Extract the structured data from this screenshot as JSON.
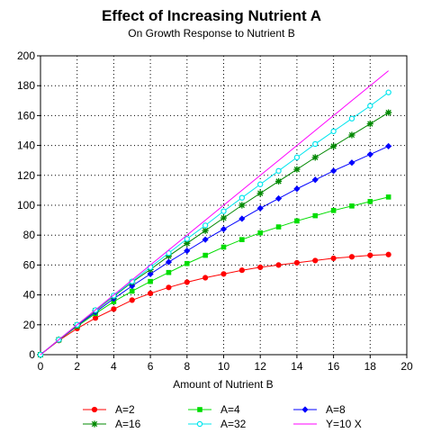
{
  "chart_data": {
    "type": "line",
    "title": "Effect of Increasing Nutrient A",
    "subtitle": "On Growth Response to Nutrient B",
    "xlabel": "Amount of Nutrient B",
    "ylabel": "",
    "xlim": [
      0,
      20
    ],
    "ylim": [
      0,
      200
    ],
    "xticks": [
      0,
      2,
      4,
      6,
      8,
      10,
      12,
      14,
      16,
      18,
      20
    ],
    "yticks": [
      0,
      20,
      40,
      60,
      80,
      100,
      120,
      140,
      160,
      180,
      200
    ],
    "grid": true,
    "legend_position": "bottom",
    "x": [
      0,
      1,
      2,
      3,
      4,
      5,
      6,
      7,
      8,
      9,
      10,
      11,
      12,
      13,
      14,
      15,
      16,
      17,
      18,
      19
    ],
    "series": [
      {
        "name": "A=2",
        "color": "#ff0000",
        "marker": "circle",
        "values": [
          0,
          9.5,
          17.5,
          24.5,
          30.5,
          36.5,
          41,
          45,
          48.5,
          51.5,
          54,
          56.5,
          58.5,
          60,
          61.5,
          63,
          64.5,
          65.5,
          66.5,
          67
        ]
      },
      {
        "name": "A=4",
        "color": "#00dd00",
        "marker": "square",
        "values": [
          0,
          9.8,
          19,
          27.5,
          35.5,
          42.5,
          49,
          55,
          61,
          66.5,
          72,
          77,
          81.5,
          85.5,
          89.5,
          93,
          96.5,
          99.5,
          102.5,
          105.5
        ]
      },
      {
        "name": "A=8",
        "color": "#0000ff",
        "marker": "diamond",
        "values": [
          0,
          9.9,
          19.5,
          28.5,
          37.5,
          46,
          54,
          62,
          69.5,
          77,
          84,
          91,
          98,
          104.5,
          111,
          117,
          123,
          128.5,
          134,
          139.5
        ]
      },
      {
        "name": "A=16",
        "color": "#008800",
        "marker": "star",
        "values": [
          0,
          10,
          19.8,
          29.5,
          39,
          48.5,
          57,
          66,
          74.5,
          83,
          91.5,
          100,
          108,
          116,
          124,
          132,
          139.5,
          147,
          154.5,
          162
        ]
      },
      {
        "name": "A=32",
        "color": "#00e5ee",
        "marker": "circle-open",
        "values": [
          0,
          10,
          20,
          29.8,
          39.5,
          49,
          58.5,
          68,
          77.5,
          86.5,
          96,
          105,
          114,
          123,
          132,
          141,
          149.5,
          158,
          166.5,
          175.5
        ]
      },
      {
        "name": "Y=10 X",
        "color": "#ff00ff",
        "marker": "none",
        "values": [
          0,
          10,
          20,
          30,
          40,
          50,
          60,
          70,
          80,
          90,
          100,
          110,
          120,
          130,
          140,
          150,
          160,
          170,
          180,
          190
        ]
      }
    ]
  }
}
